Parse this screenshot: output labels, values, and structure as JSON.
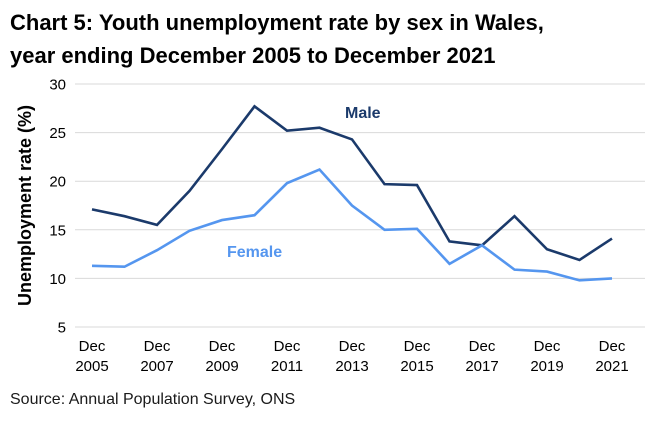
{
  "title_lines": [
    "Chart 5: Youth unemployment rate by sex in Wales,",
    "year ending December 2005 to December 2021"
  ],
  "source": "Source: Annual Population Survey, ONS",
  "chart_data": {
    "type": "line",
    "title": "Chart 5: Youth unemployment rate by sex in Wales, year ending December 2005 to December 2021",
    "x": [
      2005,
      2006,
      2007,
      2008,
      2009,
      2010,
      2011,
      2012,
      2013,
      2014,
      2015,
      2016,
      2017,
      2018,
      2019,
      2020,
      2021
    ],
    "x_tick_labels": [
      "Dec 2005",
      "Dec 2007",
      "Dec 2009",
      "Dec 2011",
      "Dec 2013",
      "Dec 2015",
      "Dec 2017",
      "Dec 2019",
      "Dec 2021"
    ],
    "series": [
      {
        "name": "Male",
        "color": "#1b3a6b",
        "values": [
          17.1,
          16.4,
          15.5,
          19.0,
          23.3,
          27.7,
          25.2,
          25.5,
          24.3,
          19.7,
          19.6,
          13.8,
          13.4,
          16.4,
          13.0,
          11.9,
          14.1
        ]
      },
      {
        "name": "Female",
        "color": "#5596ef",
        "values": [
          11.3,
          11.2,
          12.9,
          14.9,
          16.0,
          16.5,
          19.8,
          21.2,
          17.5,
          15.0,
          15.1,
          11.5,
          13.4,
          10.9,
          10.7,
          9.8,
          10.0
        ]
      }
    ],
    "xlabel": "",
    "ylabel": "Unemployment rate (%)",
    "yticks": [
      5,
      10,
      15,
      20,
      25,
      30
    ],
    "ylim": [
      5,
      30
    ],
    "grid": "horizontal",
    "gridline_color": "#d9d9d9",
    "text_color": "#000000",
    "legend": "inline labels beside lines"
  }
}
